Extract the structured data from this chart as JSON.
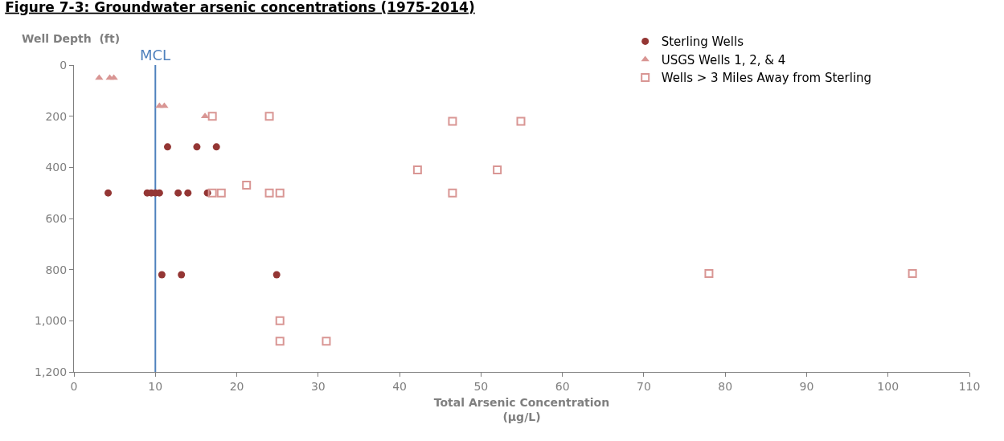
{
  "chart_data": {
    "type": "scatter",
    "title": "Figure 7-3: Groundwater arsenic concentrations (1975-2014)",
    "xlabel": "Total Arsenic Concentration\n(µg/L)",
    "ylabel": "Well Depth  (ft)",
    "series": [
      {
        "name": "Sterling Wells",
        "color": "#943634",
        "marker": "circle",
        "x": [
          4.2,
          9.0,
          9.5,
          10.0,
          10.5,
          12.8,
          14.0,
          16.4,
          11.5,
          15.1,
          17.5,
          10.8,
          13.2,
          24.9
        ],
        "values": [
          500,
          500,
          500,
          500,
          500,
          500,
          500,
          500,
          320,
          320,
          320,
          820,
          820,
          820
        ]
      },
      {
        "name": "USGS Wells 1, 2, & 4",
        "color": "#d99694",
        "marker": "triangle",
        "x": [
          3.1,
          4.4,
          4.9,
          10.5,
          11.1,
          16.1
        ],
        "values": [
          50,
          50,
          50,
          160,
          160,
          200
        ]
      },
      {
        "name": "Wells > 3 Miles Away from Sterling",
        "color": "#d99694",
        "marker": "square-open",
        "x": [
          17.0,
          24.0,
          46.5,
          54.9,
          42.2,
          52.0,
          21.2,
          17.0,
          18.1,
          24.0,
          25.3,
          46.5,
          78.0,
          103.0,
          25.3,
          25.3,
          31.0
        ],
        "values": [
          200,
          200,
          220,
          220,
          410,
          410,
          470,
          500,
          500,
          500,
          500,
          500,
          815,
          815,
          1000,
          1080,
          1080
        ]
      }
    ],
    "xlim": [
      0,
      110
    ],
    "xticks": [
      0,
      10,
      20,
      30,
      40,
      50,
      60,
      70,
      80,
      90,
      100,
      110
    ],
    "ylim": [
      1200,
      0
    ],
    "yticks": [
      0,
      200,
      400,
      600,
      800,
      {
        "value": 1000,
        "label": "1,000"
      },
      {
        "value": 1200,
        "label": "1,200"
      }
    ],
    "ref_lines": [
      {
        "axis": "x",
        "value": 10,
        "label": "MCL",
        "color": "#4f81bd"
      }
    ],
    "legend": "top right"
  }
}
